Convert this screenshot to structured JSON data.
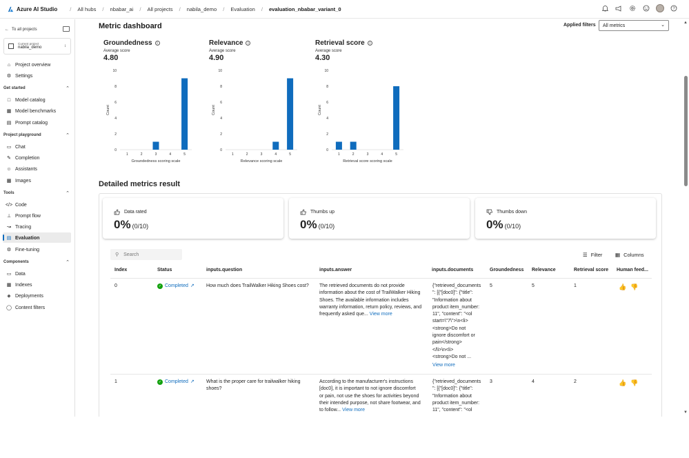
{
  "topbar": {
    "brand": "Azure AI Studio",
    "breadcrumbs": [
      "All hubs",
      "nbabar_ai",
      "All projects",
      "nabila_demo",
      "Evaluation",
      "evaluation_nbabar_variant_0"
    ]
  },
  "sidebar": {
    "back_label": "To all projects",
    "current_project_label": "Current project",
    "current_project_value": "nabila_demo",
    "top_items": [
      "Project overview",
      "Settings"
    ],
    "sections": [
      {
        "title": "Get started",
        "items": [
          "Model catalog",
          "Model benchmarks",
          "Prompt catalog"
        ]
      },
      {
        "title": "Project playground",
        "items": [
          "Chat",
          "Completion",
          "Assistants",
          "Images"
        ]
      },
      {
        "title": "Tools",
        "items": [
          "Code",
          "Prompt flow",
          "Tracing",
          "Evaluation",
          "Fine-tuning"
        ]
      },
      {
        "title": "Components",
        "items": [
          "Data",
          "Indexes",
          "Deployments",
          "Content filters"
        ]
      }
    ],
    "active_item": "Evaluation",
    "accent_color": "#0f6cbd"
  },
  "dashboard": {
    "title": "Metric dashboard",
    "applied_filters_label": "Applied filters",
    "filter_value": "All metrics",
    "average_label": "Average score",
    "count_label": "Count",
    "metrics": [
      {
        "name": "Groundedness",
        "average": "4.80"
      },
      {
        "name": "Relevance",
        "average": "4.90"
      },
      {
        "name": "Retrieval score",
        "average": "4.30"
      }
    ]
  },
  "chart_data": [
    {
      "type": "bar",
      "title": "Groundedness",
      "categories": [
        "1",
        "2",
        "3",
        "4",
        "5"
      ],
      "values": [
        0,
        0,
        1,
        0,
        9
      ],
      "xlabel": "Groundedness scoring scale",
      "ylabel": "Count",
      "ylim": [
        0,
        10
      ],
      "yticks": [
        0,
        2,
        4,
        6,
        8,
        10
      ],
      "color": "#0f6cbd"
    },
    {
      "type": "bar",
      "title": "Relevance",
      "categories": [
        "1",
        "2",
        "3",
        "4",
        "5"
      ],
      "values": [
        0,
        0,
        0,
        1,
        9
      ],
      "xlabel": "Relevance scoring scale",
      "ylabel": "Count",
      "ylim": [
        0,
        10
      ],
      "yticks": [
        0,
        2,
        4,
        6,
        8,
        10
      ],
      "color": "#0f6cbd"
    },
    {
      "type": "bar",
      "title": "Retrieval score",
      "categories": [
        "1",
        "2",
        "3",
        "4",
        "5"
      ],
      "values": [
        1,
        1,
        0,
        0,
        8
      ],
      "xlabel": "Retrieval score scoring scale",
      "ylabel": "Count",
      "ylim": [
        0,
        10
      ],
      "yticks": [
        0,
        2,
        4,
        6,
        8,
        10
      ],
      "color": "#0f6cbd"
    }
  ],
  "details": {
    "title": "Detailed metrics result",
    "kpis": [
      {
        "label": "Data rated",
        "value": "0%",
        "sub": "(0/10)",
        "icon": "thumbs-up-down-icon"
      },
      {
        "label": "Thumbs up",
        "value": "0%",
        "sub": "(0/10)",
        "icon": "thumbs-up-icon"
      },
      {
        "label": "Thumbs down",
        "value": "0%",
        "sub": "(0/10)",
        "icon": "thumbs-down-icon"
      }
    ],
    "search_placeholder": "Search",
    "filter_label": "Filter",
    "columns_label": "Columns",
    "columns": [
      "Index",
      "Status",
      "inputs.question",
      "inputs.answer",
      "inputs.documents",
      "Groundedness",
      "Relevance",
      "Retrieval score",
      "Human feed..."
    ],
    "view_more": "View more",
    "rows": [
      {
        "index": "0",
        "status": "Completed",
        "question": "How much does TrailWalker Hiking Shoes cost?",
        "answer_lines": [
          "The retrieved documents do not provide",
          "information about the cost of TrailWalker Hiking",
          "Shoes. The available information includes",
          "warranty information, return policy, reviews, and",
          "frequently asked que..."
        ],
        "document_lines": [
          "{\"retrieved_documents",
          "\": [{\"[doc0]\": {\"title\":",
          "\"Information about",
          "product item_number:",
          "11\", \"content\": \"<ol",
          "start=\\\"7\\\">\\n<li>",
          "<strong>Do not",
          "ignore discomfort or",
          "pain</strong>",
          "</li>\\n<li>",
          "<strong>Do not ..."
        ],
        "groundedness": "5",
        "relevance": "5",
        "retrieval": "1"
      },
      {
        "index": "1",
        "status": "Completed",
        "question_lines": [
          "What is the proper care for trailwalker hiking",
          "shoes?"
        ],
        "answer_lines": [
          "According to the manufacturer's instructions",
          "[doc0], it is important to not ignore discomfort",
          "or pain, not use the shoes for activities beyond",
          "their intended purpose, not share footwear, and",
          "to follow..."
        ],
        "document_lines": [
          "{\"retrieved_documents",
          "\": [{\"[doc0]\": {\"title\":",
          "\"Information about",
          "product item_number:",
          "11\", \"content\": \"<ol"
        ],
        "groundedness": "3",
        "relevance": "4",
        "retrieval": "2"
      }
    ]
  }
}
